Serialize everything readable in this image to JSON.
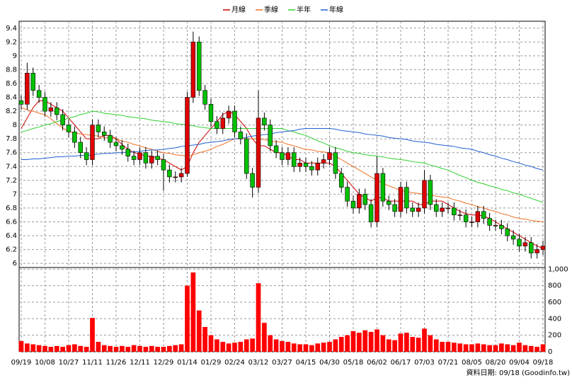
{
  "chart_data": {
    "type": "candlestick",
    "legend_position": "top",
    "grid": true,
    "up_color": "#e00000",
    "down_color": "#00c000",
    "categories": [
      "09/19",
      null,
      null,
      null,
      "10/08",
      null,
      null,
      null,
      "10/27",
      null,
      null,
      null,
      "11/11",
      null,
      null,
      null,
      "11/26",
      null,
      null,
      null,
      "12/11",
      null,
      null,
      null,
      "12/29",
      null,
      null,
      null,
      "01/14",
      null,
      null,
      null,
      "01/29",
      null,
      null,
      null,
      "02/24",
      null,
      null,
      null,
      "03/12",
      null,
      null,
      null,
      "03/27",
      null,
      null,
      null,
      "04/15",
      null,
      null,
      null,
      "04/30",
      null,
      null,
      null,
      "05/18",
      null,
      null,
      null,
      "06/02",
      null,
      null,
      null,
      "06/17",
      null,
      null,
      null,
      "07/03",
      null,
      null,
      null,
      "07/21",
      null,
      null,
      null,
      "08/05",
      null,
      null,
      null,
      "08/20",
      null,
      null,
      null,
      "09/04",
      null,
      null,
      null,
      "09/18"
    ],
    "open": [
      8.35,
      8.3,
      8.75,
      8.5,
      8.4,
      8.2,
      8.25,
      8.15,
      8.0,
      7.9,
      7.75,
      7.6,
      7.5,
      8.0,
      7.9,
      7.85,
      7.75,
      7.7,
      7.65,
      7.55,
      7.5,
      7.6,
      7.45,
      7.55,
      7.5,
      7.35,
      7.25,
      7.25,
      7.3,
      8.4,
      9.2,
      8.5,
      8.3,
      8.05,
      7.95,
      8.1,
      8.2,
      7.9,
      7.8,
      7.3,
      7.1,
      8.1,
      8.0,
      7.7,
      7.6,
      7.5,
      7.6,
      7.4,
      7.45,
      7.4,
      7.35,
      7.45,
      7.5,
      7.6,
      7.3,
      7.1,
      6.9,
      6.8,
      7.0,
      6.85,
      6.6,
      7.3,
      6.9,
      6.85,
      6.75,
      7.1,
      6.8,
      6.75,
      6.8,
      7.2,
      6.85,
      6.75,
      6.8,
      6.8,
      6.7,
      6.7,
      6.6,
      6.6,
      6.75,
      6.65,
      6.55,
      6.55,
      6.5,
      6.4,
      6.35,
      6.25,
      6.3,
      6.15,
      6.2
    ],
    "high": [
      8.43,
      8.9,
      8.83,
      8.58,
      8.48,
      8.33,
      8.33,
      8.23,
      8.08,
      7.98,
      7.83,
      7.68,
      8.08,
      8.08,
      7.98,
      7.93,
      7.83,
      7.78,
      7.73,
      7.63,
      7.68,
      7.68,
      7.63,
      7.63,
      7.58,
      7.43,
      7.33,
      7.38,
      8.48,
      9.35,
      9.28,
      8.58,
      8.38,
      8.13,
      8.18,
      8.28,
      8.28,
      7.98,
      7.88,
      7.38,
      8.5,
      8.18,
      8.08,
      7.78,
      7.68,
      7.68,
      7.68,
      7.53,
      7.53,
      7.48,
      7.53,
      7.58,
      7.68,
      7.68,
      7.38,
      7.18,
      6.98,
      7.08,
      7.08,
      6.93,
      7.55,
      7.38,
      6.98,
      6.93,
      7.18,
      7.18,
      6.88,
      6.88,
      7.35,
      7.28,
      6.93,
      6.88,
      6.88,
      6.88,
      6.78,
      6.78,
      6.68,
      6.83,
      6.83,
      6.73,
      6.63,
      6.63,
      6.58,
      6.48,
      6.43,
      6.38,
      6.38,
      6.28,
      6.33
    ],
    "low": [
      8.22,
      8.22,
      8.42,
      8.32,
      8.12,
      8.12,
      8.07,
      7.92,
      7.82,
      7.67,
      7.52,
      7.42,
      7.42,
      7.82,
      7.77,
      7.67,
      7.62,
      7.57,
      7.47,
      7.42,
      7.42,
      7.37,
      7.37,
      7.42,
      7.05,
      7.17,
      7.17,
      7.17,
      7.25,
      8.32,
      8.42,
      8.22,
      7.97,
      7.87,
      7.87,
      8.02,
      7.82,
      7.72,
      7.22,
      6.95,
      7.02,
      7.92,
      7.62,
      7.52,
      7.42,
      7.42,
      7.32,
      7.32,
      7.32,
      7.27,
      7.27,
      7.37,
      7.42,
      7.22,
      7.02,
      6.82,
      6.72,
      6.72,
      6.77,
      6.52,
      6.52,
      6.82,
      6.77,
      6.67,
      6.67,
      6.72,
      6.67,
      6.67,
      6.72,
      6.77,
      6.67,
      6.67,
      6.72,
      6.62,
      6.62,
      6.52,
      6.52,
      6.52,
      6.57,
      6.47,
      6.47,
      6.42,
      6.32,
      6.27,
      6.17,
      6.17,
      6.07,
      6.07,
      6.12
    ],
    "close": [
      8.3,
      8.75,
      8.5,
      8.4,
      8.2,
      8.25,
      8.15,
      8.0,
      7.9,
      7.75,
      7.6,
      7.5,
      8.0,
      7.9,
      7.85,
      7.75,
      7.7,
      7.65,
      7.55,
      7.5,
      7.6,
      7.45,
      7.55,
      7.5,
      7.35,
      7.25,
      7.25,
      7.3,
      8.4,
      9.2,
      8.5,
      8.3,
      8.05,
      7.95,
      8.1,
      8.2,
      7.9,
      7.8,
      7.3,
      7.1,
      8.1,
      8.0,
      7.7,
      7.6,
      7.5,
      7.6,
      7.4,
      7.45,
      7.4,
      7.35,
      7.45,
      7.5,
      7.6,
      7.3,
      7.1,
      6.9,
      6.8,
      7.0,
      6.85,
      6.6,
      7.3,
      6.9,
      6.85,
      6.75,
      7.1,
      6.8,
      6.75,
      6.8,
      7.2,
      6.85,
      6.75,
      6.8,
      6.8,
      6.7,
      6.7,
      6.6,
      6.6,
      6.75,
      6.65,
      6.55,
      6.55,
      6.5,
      6.4,
      6.35,
      6.25,
      6.3,
      6.15,
      6.2,
      6.25
    ],
    "ylim": [
      5.94,
      9.5
    ],
    "yticks": [
      6,
      6.2,
      6.4,
      6.6,
      6.8,
      7,
      7.2,
      7.4,
      7.6,
      7.8,
      8,
      8.2,
      8.4,
      8.6,
      8.8,
      9,
      9.2,
      9.4
    ],
    "series": [
      {
        "name": "月線",
        "color": "#d00000",
        "values": [
          7.95,
          8.1,
          8.25,
          8.35,
          8.35,
          8.3,
          8.25,
          8.2,
          8.1,
          8.0,
          7.9,
          7.8,
          7.8,
          7.8,
          7.85,
          7.85,
          7.8,
          7.72,
          7.65,
          7.6,
          7.58,
          7.55,
          7.55,
          7.52,
          7.5,
          7.45,
          7.4,
          7.35,
          7.4,
          7.6,
          7.75,
          7.85,
          7.95,
          8.05,
          8.15,
          8.2,
          8.15,
          8.05,
          7.95,
          7.8,
          7.7,
          7.7,
          7.65,
          7.6,
          7.6,
          7.55,
          7.5,
          7.5,
          7.45,
          7.45,
          7.45,
          7.45,
          7.45,
          7.4,
          7.3,
          7.2,
          7.1,
          7.0,
          6.95,
          6.9,
          6.95,
          6.95,
          6.9,
          6.9,
          6.9,
          6.9,
          6.9,
          6.85,
          6.85,
          6.9,
          6.9,
          6.9,
          6.85,
          6.8,
          6.75,
          6.72,
          6.7,
          6.7,
          6.68,
          6.65,
          6.6,
          6.55,
          6.5,
          6.45,
          6.4,
          6.35,
          6.3,
          6.25,
          6.22
        ]
      },
      {
        "name": "季線",
        "color": "#f07020",
        "values": [
          8.25,
          8.22,
          8.2,
          8.17,
          8.15,
          8.09,
          8.02,
          7.96,
          7.9,
          7.89,
          7.87,
          7.86,
          7.85,
          7.84,
          7.82,
          7.81,
          7.8,
          7.77,
          7.75,
          7.72,
          7.7,
          7.67,
          7.65,
          7.62,
          7.6,
          7.59,
          7.57,
          7.56,
          7.55,
          7.57,
          7.6,
          7.62,
          7.65,
          7.69,
          7.72,
          7.76,
          7.8,
          7.8,
          7.8,
          7.8,
          7.8,
          7.79,
          7.77,
          7.76,
          7.75,
          7.72,
          7.7,
          7.67,
          7.65,
          7.64,
          7.62,
          7.61,
          7.6,
          7.55,
          7.5,
          7.45,
          7.4,
          7.35,
          7.3,
          7.25,
          7.2,
          7.16,
          7.12,
          7.09,
          7.05,
          7.04,
          7.02,
          7.01,
          7.0,
          6.99,
          6.97,
          6.96,
          6.95,
          6.92,
          6.9,
          6.87,
          6.85,
          6.82,
          6.8,
          6.77,
          6.75,
          6.72,
          6.7,
          6.67,
          6.65,
          6.64,
          6.62,
          6.61,
          6.6
        ]
      },
      {
        "name": "半年",
        "color": "#30d030",
        "values": [
          7.9,
          7.92,
          7.95,
          7.97,
          8.0,
          8.02,
          8.05,
          8.07,
          8.1,
          8.12,
          8.15,
          8.17,
          8.2,
          8.19,
          8.17,
          8.16,
          8.15,
          8.14,
          8.12,
          8.11,
          8.1,
          8.09,
          8.07,
          8.06,
          8.05,
          8.04,
          8.02,
          8.01,
          8.0,
          7.99,
          7.97,
          7.96,
          7.95,
          7.95,
          7.95,
          7.95,
          7.95,
          7.95,
          7.95,
          7.95,
          7.95,
          7.95,
          7.95,
          7.95,
          7.95,
          7.92,
          7.9,
          7.87,
          7.85,
          7.81,
          7.77,
          7.74,
          7.7,
          7.67,
          7.65,
          7.62,
          7.6,
          7.59,
          7.57,
          7.56,
          7.55,
          7.54,
          7.52,
          7.51,
          7.5,
          7.49,
          7.47,
          7.46,
          7.45,
          7.42,
          7.4,
          7.37,
          7.35,
          7.31,
          7.27,
          7.24,
          7.2,
          7.17,
          7.15,
          7.12,
          7.1,
          7.07,
          7.05,
          7.02,
          7.0,
          6.97,
          6.94,
          6.91,
          6.88
        ]
      },
      {
        "name": "年線",
        "color": "#2060d0",
        "values": [
          7.5,
          7.5,
          7.51,
          7.51,
          7.52,
          7.53,
          7.54,
          7.54,
          7.55,
          7.55,
          7.56,
          7.56,
          7.57,
          7.58,
          7.59,
          7.59,
          7.6,
          7.6,
          7.61,
          7.61,
          7.62,
          7.63,
          7.64,
          7.64,
          7.65,
          7.66,
          7.67,
          7.69,
          7.7,
          7.71,
          7.72,
          7.74,
          7.75,
          7.76,
          7.77,
          7.79,
          7.8,
          7.81,
          7.82,
          7.84,
          7.85,
          7.86,
          7.87,
          7.89,
          7.9,
          7.91,
          7.92,
          7.94,
          7.95,
          7.95,
          7.95,
          7.95,
          7.95,
          7.94,
          7.92,
          7.91,
          7.9,
          7.89,
          7.87,
          7.86,
          7.85,
          7.84,
          7.82,
          7.81,
          7.8,
          7.79,
          7.77,
          7.76,
          7.75,
          7.74,
          7.72,
          7.71,
          7.7,
          7.69,
          7.67,
          7.66,
          7.65,
          7.62,
          7.6,
          7.57,
          7.55,
          7.52,
          7.5,
          7.47,
          7.45,
          7.42,
          7.4,
          7.37,
          7.35
        ]
      }
    ],
    "volume": {
      "color": "#ff0000",
      "values": [
        130,
        100,
        90,
        80,
        70,
        60,
        70,
        60,
        80,
        90,
        70,
        60,
        410,
        120,
        80,
        70,
        60,
        70,
        60,
        80,
        70,
        60,
        70,
        60,
        60,
        70,
        80,
        90,
        800,
        960,
        500,
        300,
        200,
        150,
        120,
        100,
        110,
        120,
        150,
        160,
        830,
        350,
        200,
        150,
        130,
        120,
        100,
        90,
        90,
        80,
        100,
        110,
        120,
        150,
        180,
        200,
        250,
        230,
        260,
        240,
        270,
        200,
        150,
        140,
        220,
        230,
        180,
        170,
        280,
        200,
        150,
        120,
        120,
        110,
        100,
        90,
        90,
        100,
        90,
        80,
        80,
        100,
        90,
        80,
        110,
        80,
        70,
        60,
        90
      ],
      "ylim": [
        0,
        1020
      ],
      "yticks": [
        0,
        200,
        400,
        600,
        800,
        {
          "value": 1000,
          "label": "1,000"
        }
      ]
    },
    "source": "資料日期: 09/18 (Goodinfo.tw)"
  }
}
